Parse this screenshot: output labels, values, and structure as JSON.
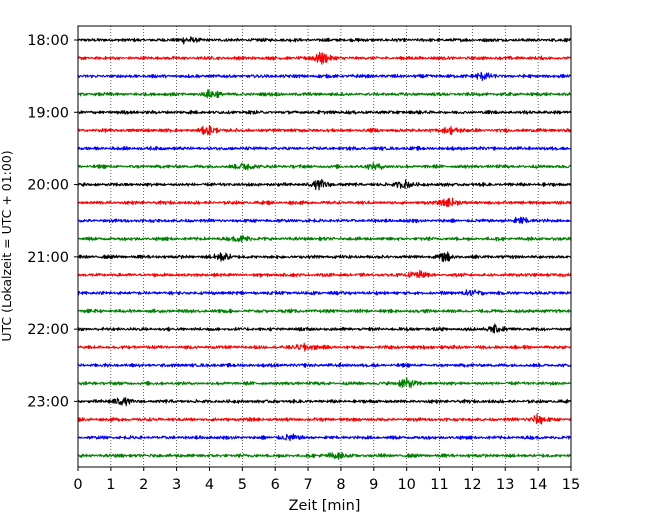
{
  "chart_data": {
    "type": "line",
    "title": "",
    "xlabel": "Zeit  [min]",
    "ylabel": "UTC (Lokalzeit = UTC + 01:00)",
    "xlim": [
      0,
      15
    ],
    "x_ticks": [
      "0",
      "1",
      "2",
      "3",
      "4",
      "5",
      "6",
      "7",
      "8",
      "9",
      "10",
      "11",
      "12",
      "13",
      "14",
      "15"
    ],
    "y_ticks": [
      "18:00",
      "19:00",
      "20:00",
      "21:00",
      "22:00",
      "23:00"
    ],
    "grid": "vertical-dotted",
    "trace_colors": [
      "#000000",
      "#ff0000",
      "#0000ff",
      "#008000"
    ],
    "trace_interval_min": 15,
    "series_start": "18:00",
    "trace_count": 24,
    "trace_mean_amplitude": 0,
    "events": [
      {
        "trace": 0,
        "minute": 3.3,
        "amplitude": 0.5
      },
      {
        "trace": 1,
        "minute": 7.4,
        "amplitude": 0.9
      },
      {
        "trace": 2,
        "minute": 12.3,
        "amplitude": 0.6
      },
      {
        "trace": 3,
        "minute": 4.1,
        "amplitude": 0.6
      },
      {
        "trace": 5,
        "minute": 4.0,
        "amplitude": 0.6
      },
      {
        "trace": 5,
        "minute": 11.4,
        "amplitude": 0.5
      },
      {
        "trace": 7,
        "minute": 5.1,
        "amplitude": 0.6
      },
      {
        "trace": 7,
        "minute": 9.1,
        "amplitude": 0.5
      },
      {
        "trace": 8,
        "minute": 7.4,
        "amplitude": 0.7
      },
      {
        "trace": 8,
        "minute": 9.9,
        "amplitude": 0.6
      },
      {
        "trace": 9,
        "minute": 11.3,
        "amplitude": 0.6
      },
      {
        "trace": 10,
        "minute": 13.5,
        "amplitude": 0.5
      },
      {
        "trace": 11,
        "minute": 5.0,
        "amplitude": 0.5
      },
      {
        "trace": 12,
        "minute": 4.4,
        "amplitude": 0.6
      },
      {
        "trace": 12,
        "minute": 11.2,
        "amplitude": 0.6
      },
      {
        "trace": 13,
        "minute": 10.3,
        "amplitude": 0.6
      },
      {
        "trace": 14,
        "minute": 12.0,
        "amplitude": 0.5
      },
      {
        "trace": 16,
        "minute": 12.7,
        "amplitude": 0.6
      },
      {
        "trace": 17,
        "minute": 6.9,
        "amplitude": 0.6
      },
      {
        "trace": 19,
        "minute": 10.0,
        "amplitude": 0.8
      },
      {
        "trace": 20,
        "minute": 1.3,
        "amplitude": 0.6
      },
      {
        "trace": 21,
        "minute": 14.0,
        "amplitude": 0.7
      },
      {
        "trace": 22,
        "minute": 6.4,
        "amplitude": 0.5
      },
      {
        "trace": 23,
        "minute": 7.8,
        "amplitude": 0.5
      }
    ]
  }
}
